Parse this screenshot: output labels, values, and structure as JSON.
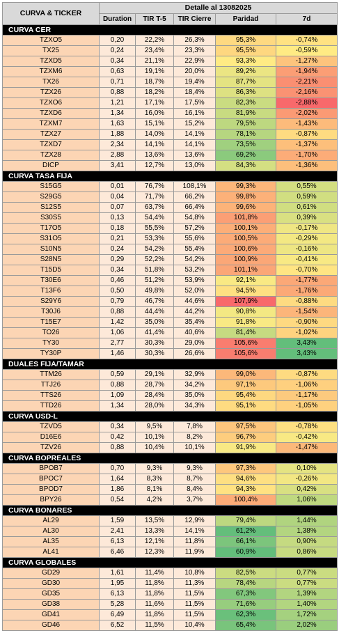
{
  "header": {
    "title": "CURVA & TICKER",
    "detail": "Detalle al 13082025",
    "columns": [
      "Duration",
      "TIR T-5",
      "TIR Cierre",
      "Paridad",
      "7d"
    ]
  },
  "sections": [
    {
      "title": "CURVA CER",
      "rows": [
        [
          "TZXO5",
          "0,20",
          "22,2%",
          "26,3%",
          "95,3%",
          "-0,74%"
        ],
        [
          "TX25",
          "0,24",
          "23,4%",
          "23,3%",
          "95,5%",
          "-0,59%"
        ],
        [
          "TZXD5",
          "0,34",
          "21,1%",
          "22,9%",
          "93,3%",
          "-1,27%"
        ],
        [
          "TZXM6",
          "0,63",
          "19,1%",
          "20,0%",
          "89,2%",
          "-1,94%"
        ],
        [
          "TX26",
          "0,71",
          "18,7%",
          "19,4%",
          "87,7%",
          "-2,21%"
        ],
        [
          "TZX26",
          "0,88",
          "18,2%",
          "18,4%",
          "86,3%",
          "-2,16%"
        ],
        [
          "TZXO6",
          "1,21",
          "17,1%",
          "17,5%",
          "82,3%",
          "-2,88%"
        ],
        [
          "TZXD6",
          "1,34",
          "16,0%",
          "16,1%",
          "81,9%",
          "-2,02%"
        ],
        [
          "TZXM7",
          "1,63",
          "15,1%",
          "15,2%",
          "79,5%",
          "-1,43%"
        ],
        [
          "TZX27",
          "1,88",
          "14,0%",
          "14,1%",
          "78,1%",
          "-0,87%"
        ],
        [
          "TZXD7",
          "2,34",
          "14,1%",
          "14,1%",
          "73,5%",
          "-1,37%"
        ],
        [
          "TZX28",
          "2,88",
          "13,6%",
          "13,6%",
          "69,2%",
          "-1,70%"
        ],
        [
          "DICP",
          "3,41",
          "12,7%",
          "13,0%",
          "84,3%",
          "-1,36%"
        ]
      ]
    },
    {
      "title": "CURVA TASA FIJA",
      "rows": [
        [
          "S15G5",
          "0,01",
          "76,7%",
          "108,1%",
          "99,3%",
          "0,55%"
        ],
        [
          "S29G5",
          "0,04",
          "71,7%",
          "66,2%",
          "99,8%",
          "0,59%"
        ],
        [
          "S12S5",
          "0,07",
          "63,7%",
          "66,4%",
          "99,6%",
          "0,61%"
        ],
        [
          "S30S5",
          "0,13",
          "54,4%",
          "54,8%",
          "101,8%",
          "0,39%"
        ],
        [
          "T17O5",
          "0,18",
          "55,5%",
          "57,2%",
          "100,1%",
          "-0,17%"
        ],
        [
          "S31O5",
          "0,21",
          "53,3%",
          "55,6%",
          "100,5%",
          "-0,29%"
        ],
        [
          "S10N5",
          "0,24",
          "54,2%",
          "55,4%",
          "100,6%",
          "-0,16%"
        ],
        [
          "S28N5",
          "0,29",
          "52,2%",
          "54,2%",
          "100,9%",
          "-0,41%"
        ],
        [
          "T15D5",
          "0,34",
          "51,8%",
          "53,2%",
          "101,1%",
          "-0,70%"
        ],
        [
          "T30E6",
          "0,46",
          "51,2%",
          "53,9%",
          "92,1%",
          "-1,77%"
        ],
        [
          "T13F6",
          "0,50",
          "49,8%",
          "52,0%",
          "94,5%",
          "-1,76%"
        ],
        [
          "S29Y6",
          "0,79",
          "46,7%",
          "44,6%",
          "107,9%",
          "-0,88%"
        ],
        [
          "T30J6",
          "0,88",
          "44,4%",
          "44,2%",
          "90,8%",
          "-1,54%"
        ],
        [
          "T15E7",
          "1,42",
          "35,0%",
          "35,4%",
          "91,8%",
          "-0,90%"
        ],
        [
          "TO26",
          "1,06",
          "41,4%",
          "40,6%",
          "81,4%",
          "-1,02%"
        ],
        [
          "TY30",
          "2,77",
          "30,3%",
          "29,0%",
          "105,6%",
          "3,43%"
        ],
        [
          "TY30P",
          "1,46",
          "30,3%",
          "26,6%",
          "105,6%",
          "3,43%"
        ]
      ]
    },
    {
      "title": "DUALES FIJA/TAMAR",
      "rows": [
        [
          "TTM26",
          "0,59",
          "29,1%",
          "32,9%",
          "99,0%",
          "-0,87%"
        ],
        [
          "TTJ26",
          "0,88",
          "28,7%",
          "34,2%",
          "97,1%",
          "-1,06%"
        ],
        [
          "TTS26",
          "1,09",
          "28,4%",
          "35,0%",
          "95,4%",
          "-1,17%"
        ],
        [
          "TTD26",
          "1,34",
          "28,0%",
          "34,3%",
          "95,1%",
          "-1,05%"
        ]
      ]
    },
    {
      "title": "CURVA USD-L",
      "rows": [
        [
          "TZVD5",
          "0,34",
          "9,5%",
          "7,8%",
          "97,5%",
          "-0,78%"
        ],
        [
          "D16E6",
          "0,42",
          "10,1%",
          "8,2%",
          "96,7%",
          "-0,42%"
        ],
        [
          "TZV26",
          "0,88",
          "10,4%",
          "10,1%",
          "91,9%",
          "-1,47%"
        ]
      ]
    },
    {
      "title": "CURVA BOPREALES",
      "rows": [
        [
          "BPOB7",
          "0,70",
          "9,3%",
          "9,3%",
          "97,3%",
          "0,10%"
        ],
        [
          "BPOC7",
          "1,64",
          "8,3%",
          "8,7%",
          "94,6%",
          "-0,26%"
        ],
        [
          "BPOD7",
          "1,86",
          "8,1%",
          "8,4%",
          "94,3%",
          "0,42%"
        ],
        [
          "BPY26",
          "0,54",
          "4,2%",
          "3,7%",
          "100,4%",
          "1,06%"
        ]
      ]
    },
    {
      "title": "CURVA BONARES",
      "rows": [
        [
          "AL29",
          "1,59",
          "13,5%",
          "12,9%",
          "79,4%",
          "1,44%"
        ],
        [
          "AL30",
          "2,41",
          "13,3%",
          "14,1%",
          "61,2%",
          "1,38%"
        ],
        [
          "AL35",
          "6,13",
          "12,1%",
          "11,8%",
          "66,1%",
          "0,90%"
        ],
        [
          "AL41",
          "6,46",
          "12,3%",
          "11,9%",
          "60,9%",
          "0,86%"
        ]
      ]
    },
    {
      "title": "CURVA GLOBALES",
      "rows": [
        [
          "GD29",
          "1,61",
          "11,4%",
          "10,8%",
          "82,5%",
          "0,77%"
        ],
        [
          "GD30",
          "1,95",
          "11,8%",
          "11,3%",
          "78,4%",
          "0,77%"
        ],
        [
          "GD35",
          "6,13",
          "11,8%",
          "11,5%",
          "67,3%",
          "1,39%"
        ],
        [
          "GD38",
          "5,28",
          "11,6%",
          "11,5%",
          "71,6%",
          "1,40%"
        ],
        [
          "GD41",
          "6,49",
          "11,8%",
          "11,5%",
          "62,3%",
          "1,72%"
        ],
        [
          "GD46",
          "6,52",
          "11,5%",
          "10,4%",
          "65,4%",
          "2,02%"
        ]
      ]
    }
  ]
}
